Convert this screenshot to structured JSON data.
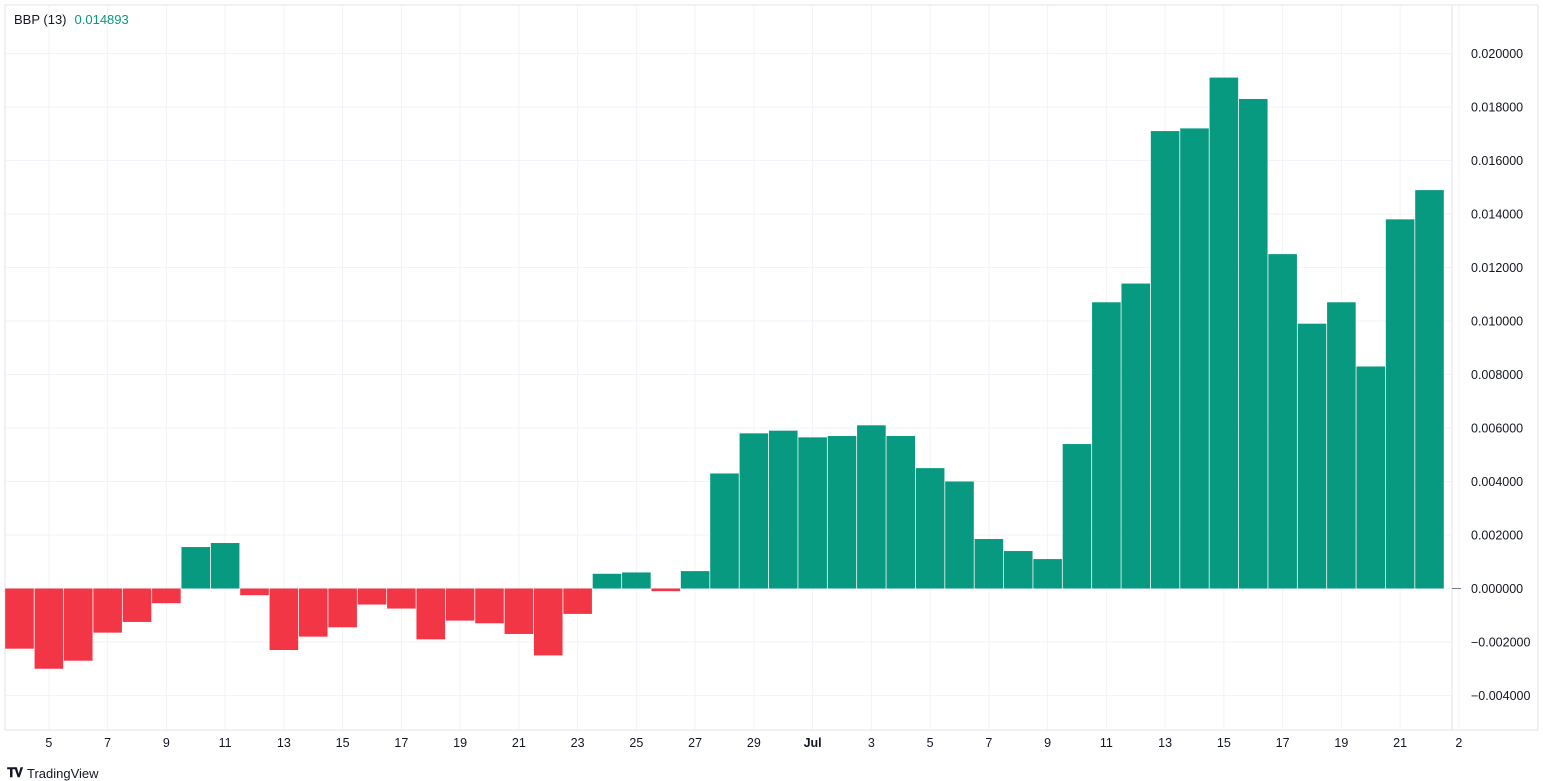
{
  "indicator": {
    "name": "BBP (13)",
    "value": "0.014893"
  },
  "branding": {
    "logo": "tradingview-logo-icon",
    "text": "TradingView"
  },
  "colors": {
    "positive": "#089981",
    "negative": "#F23645",
    "grid": "#F0F3FA",
    "value_text": "#089981"
  },
  "chart_data": {
    "type": "bar",
    "ylim": [
      -0.0049,
      0.0218
    ],
    "y_ticks": [
      0.02,
      0.018,
      0.016,
      0.014,
      0.012,
      0.01,
      0.008,
      0.006,
      0.004,
      0.002,
      0.0,
      -0.002,
      -0.004
    ],
    "y_tick_labels": [
      "0.020000",
      "0.018000",
      "0.016000",
      "0.014000",
      "0.012000",
      "0.010000",
      "0.008000",
      "0.006000",
      "0.004000",
      "0.002000",
      "0.000000",
      "−0.002000",
      "−0.004000"
    ],
    "x_tick_labels": [
      {
        "label": "5",
        "index": 1
      },
      {
        "label": "7",
        "index": 3
      },
      {
        "label": "9",
        "index": 5
      },
      {
        "label": "11",
        "index": 7
      },
      {
        "label": "13",
        "index": 9
      },
      {
        "label": "15",
        "index": 11
      },
      {
        "label": "17",
        "index": 13
      },
      {
        "label": "19",
        "index": 15
      },
      {
        "label": "21",
        "index": 17
      },
      {
        "label": "23",
        "index": 19
      },
      {
        "label": "25",
        "index": 21
      },
      {
        "label": "27",
        "index": 23
      },
      {
        "label": "29",
        "index": 25
      },
      {
        "label": "Jul",
        "index": 27,
        "bold": true
      },
      {
        "label": "3",
        "index": 29
      },
      {
        "label": "5",
        "index": 31
      },
      {
        "label": "7",
        "index": 33
      },
      {
        "label": "9",
        "index": 35
      },
      {
        "label": "11",
        "index": 37
      },
      {
        "label": "13",
        "index": 39
      },
      {
        "label": "15",
        "index": 41
      },
      {
        "label": "17",
        "index": 43
      },
      {
        "label": "19",
        "index": 45
      },
      {
        "label": "21",
        "index": 47
      },
      {
        "label": "2",
        "index": 49
      }
    ],
    "values": [
      -0.00225,
      -0.003,
      -0.0027,
      -0.00165,
      -0.00125,
      -0.00055,
      0.00155,
      0.0017,
      -0.00025,
      -0.0023,
      -0.0018,
      -0.00145,
      -0.0006,
      -0.00075,
      -0.0019,
      -0.0012,
      -0.0013,
      -0.0017,
      -0.0025,
      -0.00095,
      0.00055,
      0.0006,
      -0.0001,
      0.00065,
      0.0043,
      0.0058,
      0.0059,
      0.00565,
      0.0057,
      0.0061,
      0.0057,
      0.0045,
      0.004,
      0.00185,
      0.0014,
      0.0011,
      0.0054,
      0.0107,
      0.0114,
      0.0171,
      0.0172,
      0.0191,
      0.0183,
      0.0125,
      0.0099,
      0.0107,
      0.0083,
      0.0138,
      0.014893
    ]
  }
}
